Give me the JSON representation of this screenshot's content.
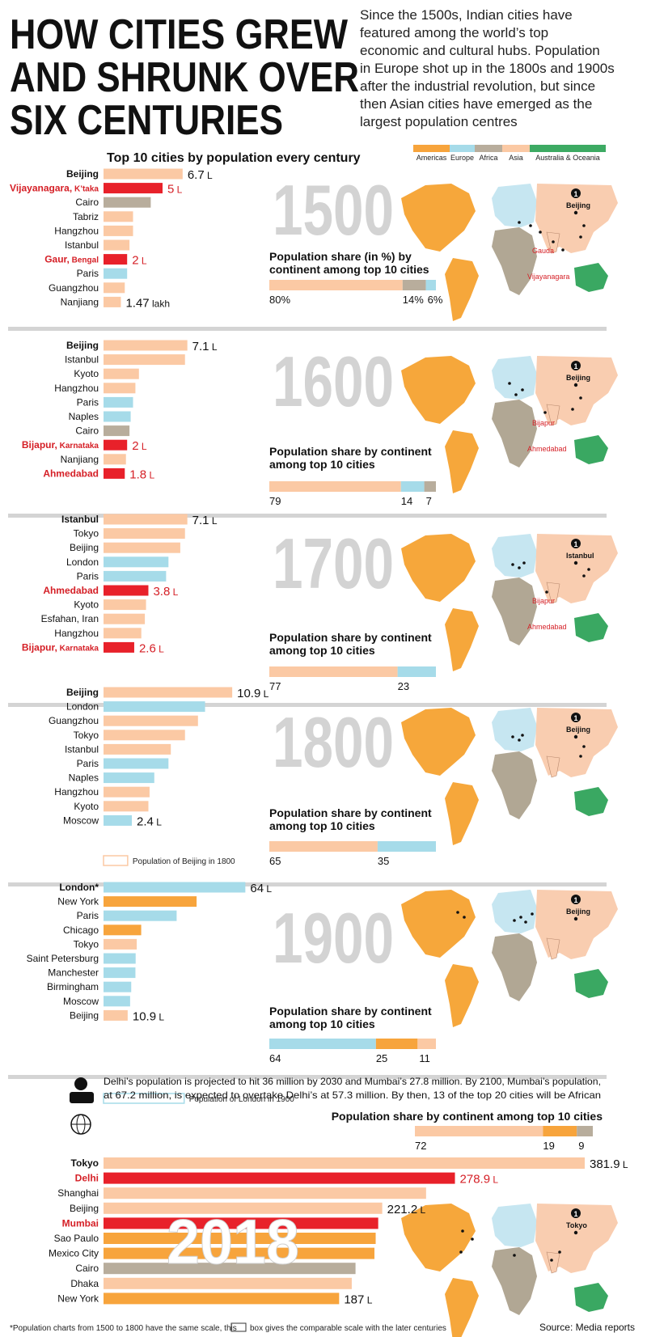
{
  "header": {
    "title_lines": [
      "HOW CITIES GREW",
      "AND SHRUNK OVER",
      "SIX CENTURIES"
    ],
    "intro_lines": [
      "Since the 1500s, Indian cities have",
      "featured among the world’s top",
      "economic and cultural hubs. Population",
      "in Europe shot up in the 1800s and 1900s",
      "after the industrial revolution, but since",
      "then Asian cities have emerged as the",
      "largest population centres"
    ],
    "subtitle": "Top 10 cities by population every century"
  },
  "legend": [
    {
      "name": "Americas",
      "color": "#f7a43c"
    },
    {
      "name": "Europe",
      "color": "#a6dbe9"
    },
    {
      "name": "Africa",
      "color": "#b8ad9c"
    },
    {
      "name": "Asia",
      "color": "#fbc9a4"
    },
    {
      "name": "Australia & Oceania",
      "color": "#3daa63"
    }
  ],
  "colors": {
    "Americas": "#f7a43c",
    "Europe": "#a6dbe9",
    "Africa": "#b8ad9c",
    "Asia": "#fbc9a4",
    "India": "#e8212a",
    "Oceania": "#3daa63",
    "year_text": "#d3d3d3",
    "india_text": "#d51f26",
    "map_asia": "#f9cdb0",
    "map_europe": "#c6e6f1",
    "map_africa": "#b1a794",
    "map_americas": "#f6a73b",
    "map_oceania": "#3aa862"
  },
  "footer": {
    "note_before": "*Population charts from 1500 to 1800 have the same scale, this",
    "note_after": "box gives the comparable scale with the later centuries",
    "source": "Source: Media reports"
  },
  "sections": [
    {
      "year": "1500",
      "share_title_lines": [
        "Population share (in %) by",
        "continent among top 10 cities"
      ],
      "share_labels": [
        "80%",
        "14%",
        "6%"
      ],
      "map_labels": [
        {
          "text": "Beijing",
          "india": false
        },
        {
          "text": "Gauda",
          "india": true
        },
        {
          "text": "Vijayanagara",
          "india": true
        }
      ],
      "value_labels": [
        {
          "row": 0,
          "text": "6.7",
          "unit": "L"
        },
        {
          "row": 1,
          "text": "5",
          "unit": "L"
        },
        {
          "row": 6,
          "text": "2",
          "unit": "L"
        },
        {
          "row": 9,
          "text": "1.47",
          "unit": "lakh"
        }
      ]
    },
    {
      "year": "1600",
      "share_title_lines": [
        "Population share by continent",
        "among top 10 cities"
      ],
      "share_labels": [
        "79",
        "14",
        "7"
      ],
      "map_labels": [
        {
          "text": "Beijing",
          "india": false
        },
        {
          "text": "Bijapur",
          "india": true
        },
        {
          "text": "Ahmedabad",
          "india": true
        }
      ],
      "value_labels": [
        {
          "row": 0,
          "text": "7.1",
          "unit": "L"
        },
        {
          "row": 7,
          "text": "2",
          "unit": "L"
        },
        {
          "row": 9,
          "text": "1.8",
          "unit": "L"
        }
      ]
    },
    {
      "year": "1700",
      "share_title_lines": [
        "Population share by continent",
        "among top 10 cities"
      ],
      "share_labels": [
        "77",
        "23"
      ],
      "map_labels": [
        {
          "text": "Istanbul",
          "india": false
        },
        {
          "text": "Bijapur",
          "india": true
        },
        {
          "text": "Ahmedabad",
          "india": true
        }
      ],
      "value_labels": [
        {
          "row": 0,
          "text": "7.1",
          "unit": "L"
        },
        {
          "row": 5,
          "text": "3.8",
          "unit": "L"
        },
        {
          "row": 9,
          "text": "2.6",
          "unit": "L"
        }
      ]
    },
    {
      "year": "1800",
      "share_title_lines": [
        "Population share by continent",
        "among top 10 cities"
      ],
      "share_labels": [
        "65",
        "35"
      ],
      "map_labels": [
        {
          "text": "Beijing",
          "india": false
        }
      ],
      "value_labels": [
        {
          "row": 0,
          "text": "10.9",
          "unit": "L"
        },
        {
          "row": 9,
          "text": "2.4",
          "unit": "L"
        }
      ]
    },
    {
      "year": "1900",
      "share_title_lines": [
        "Population share by continent",
        "among top 10 cities"
      ],
      "share_labels": [
        "64",
        "25",
        "11"
      ],
      "ref_label": "Population of Beijing in 1800",
      "map_labels": [
        {
          "text": "Beijing",
          "india": false
        }
      ],
      "value_labels": [
        {
          "row": 0,
          "text": "64",
          "unit": "L"
        },
        {
          "row": 9,
          "text": "10.9",
          "unit": "L"
        }
      ]
    },
    {
      "year": "2018",
      "share_title_lines": [
        "Population share by continent among top 10 cities"
      ],
      "share_labels": [
        "72",
        "19",
        "9"
      ],
      "ref_label": "Population of London in 1900",
      "projection_lines": [
        "Delhi’s population is projected to hit 36 million by 2030 and Mumbai’s 27.8 million. By 2100, Mumbai’s population,",
        "at 67.2 million, is expected to overtake Delhi’s at 57.3 million. By then, 13 of the top 20 cities will be African"
      ],
      "map_labels": [
        {
          "text": "Tokyo",
          "india": false
        }
      ],
      "value_labels": [
        {
          "row": 0,
          "text": "381.9",
          "unit": "L"
        },
        {
          "row": 1,
          "text": "278.9",
          "unit": "L"
        },
        {
          "row": 3,
          "text": "221.2",
          "unit": "L"
        },
        {
          "row": 9,
          "text": "187",
          "unit": "L"
        }
      ]
    }
  ],
  "chart_data": [
    {
      "type": "bar",
      "title": "1500",
      "value_unit": "lakh",
      "categories": [
        "Beijing",
        "Vijayanagara, K’taka",
        "Cairo",
        "Tabriz",
        "Hangzhou",
        "Istanbul",
        "Gaur, Bengal",
        "Paris",
        "Guangzhou",
        "Nanjiang"
      ],
      "values": [
        6.7,
        5,
        4,
        2.5,
        2.5,
        2.2,
        2,
        2,
        1.8,
        1.47
      ],
      "continents": [
        "Asia",
        "India",
        "Africa",
        "Asia",
        "Asia",
        "Asia",
        "India",
        "Europe",
        "Asia",
        "Asia"
      ],
      "india": [
        false,
        true,
        false,
        false,
        false,
        false,
        true,
        false,
        false,
        false
      ],
      "share": [
        {
          "continent": "Asia",
          "pct": 80
        },
        {
          "continent": "Africa",
          "pct": 14
        },
        {
          "continent": "Europe",
          "pct": 6
        }
      ]
    },
    {
      "type": "bar",
      "title": "1600",
      "value_unit": "lakh",
      "categories": [
        "Beijing",
        "Istanbul",
        "Kyoto",
        "Hangzhou",
        "Paris",
        "Naples",
        "Cairo",
        "Bijapur, Karnataka",
        "Nanjiang",
        "Ahmedabad"
      ],
      "values": [
        7.1,
        6.9,
        3.0,
        2.7,
        2.5,
        2.3,
        2.2,
        2,
        1.9,
        1.8
      ],
      "continents": [
        "Asia",
        "Asia",
        "Asia",
        "Asia",
        "Europe",
        "Europe",
        "Africa",
        "India",
        "Asia",
        "India"
      ],
      "india": [
        false,
        false,
        false,
        false,
        false,
        false,
        false,
        true,
        false,
        true
      ],
      "share": [
        {
          "continent": "Asia",
          "pct": 79
        },
        {
          "continent": "Europe",
          "pct": 14
        },
        {
          "continent": "Africa",
          "pct": 7
        }
      ]
    },
    {
      "type": "bar",
      "title": "1700",
      "value_unit": "lakh",
      "categories": [
        "Istanbul",
        "Tokyo",
        "Beijing",
        "London",
        "Paris",
        "Ahmedabad",
        "Kyoto",
        "Esfahan, Iran",
        "Hangzhou",
        "Bijapur, Karnataka"
      ],
      "values": [
        7.1,
        6.9,
        6.5,
        5.5,
        5.3,
        3.8,
        3.6,
        3.5,
        3.2,
        2.6
      ],
      "continents": [
        "Asia",
        "Asia",
        "Asia",
        "Europe",
        "Europe",
        "India",
        "Asia",
        "Asia",
        "Asia",
        "India"
      ],
      "india": [
        false,
        false,
        false,
        false,
        false,
        true,
        false,
        false,
        false,
        true
      ],
      "share": [
        {
          "continent": "Asia",
          "pct": 77
        },
        {
          "continent": "Europe",
          "pct": 23
        }
      ]
    },
    {
      "type": "bar",
      "title": "1800",
      "value_unit": "lakh",
      "categories": [
        "Beijing",
        "London",
        "Guangzhou",
        "Tokyo",
        "Istanbul",
        "Paris",
        "Naples",
        "Hangzhou",
        "Kyoto",
        "Moscow"
      ],
      "values": [
        10.9,
        8.6,
        8.0,
        6.9,
        5.7,
        5.5,
        4.3,
        3.9,
        3.8,
        2.4
      ],
      "continents": [
        "Asia",
        "Europe",
        "Asia",
        "Asia",
        "Asia",
        "Europe",
        "Europe",
        "Asia",
        "Asia",
        "Europe"
      ],
      "india": [
        false,
        false,
        false,
        false,
        false,
        false,
        false,
        false,
        false,
        false
      ],
      "share": [
        {
          "continent": "Asia",
          "pct": 65
        },
        {
          "continent": "Europe",
          "pct": 35
        }
      ]
    },
    {
      "type": "bar",
      "title": "1900",
      "value_unit": "lakh",
      "reference_value": 10.9,
      "categories": [
        "London*",
        "New York",
        "Paris",
        "Chicago",
        "Tokyo",
        "Saint Petersburg",
        "Manchester",
        "Birmingham",
        "Moscow",
        "Beijing"
      ],
      "values": [
        64,
        42,
        33,
        17,
        15,
        14.5,
        14.4,
        12.5,
        12,
        10.9
      ],
      "continents": [
        "Europe",
        "Americas",
        "Europe",
        "Americas",
        "Asia",
        "Europe",
        "Europe",
        "Europe",
        "Europe",
        "Asia"
      ],
      "india": [
        false,
        false,
        false,
        false,
        false,
        false,
        false,
        false,
        false,
        false
      ],
      "share": [
        {
          "continent": "Europe",
          "pct": 64
        },
        {
          "continent": "Americas",
          "pct": 25
        },
        {
          "continent": "Asia",
          "pct": 11
        }
      ]
    },
    {
      "type": "bar",
      "title": "2018",
      "value_unit": "lakh",
      "reference_value": 64,
      "categories": [
        "Tokyo",
        "Delhi",
        "Shanghai",
        "Beijing",
        "Mumbai",
        "Sao Paulo",
        "Mexico City",
        "Cairo",
        "Dhaka",
        "New York"
      ],
      "values": [
        381.9,
        278.9,
        256,
        221.2,
        218,
        216,
        215,
        200,
        197,
        187
      ],
      "continents": [
        "Asia",
        "India",
        "Asia",
        "Asia",
        "India",
        "Americas",
        "Americas",
        "Africa",
        "Asia",
        "Americas"
      ],
      "india": [
        false,
        true,
        false,
        false,
        true,
        false,
        false,
        false,
        false,
        false
      ],
      "share": [
        {
          "continent": "Asia",
          "pct": 72
        },
        {
          "continent": "Americas",
          "pct": 19
        },
        {
          "continent": "Africa",
          "pct": 9
        }
      ]
    }
  ]
}
